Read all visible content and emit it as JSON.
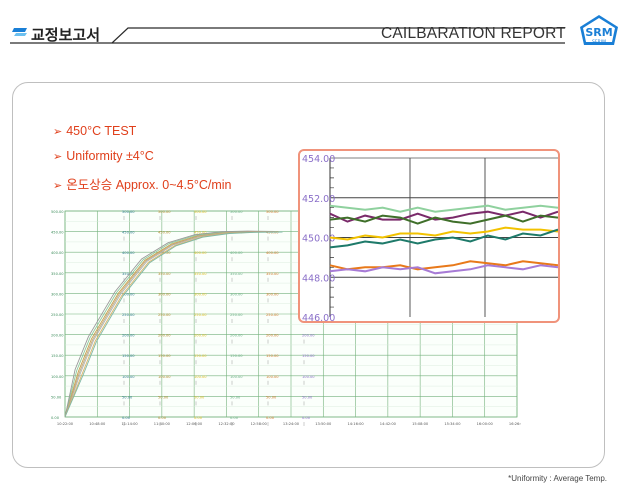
{
  "header": {
    "title": "교정보고서",
    "report_title": "CAILBARATION  REPORT",
    "logo_text": "SERIM",
    "logo_letters": "SRM",
    "accent": "#1a7fd6"
  },
  "bullets": [
    {
      "text": "450°C  TEST"
    },
    {
      "text": "Uniformity  ±4°C"
    },
    {
      "text": "온도상승  Approx. 0~4.5°C/min"
    }
  ],
  "footnote": "*Uniformity : Average Temp.",
  "colors": {
    "text_accent": "#e0401c",
    "zoom_border": "#f0937b",
    "axis_label": "#8a6fc9",
    "grid_main": "#74b27c"
  },
  "chart_data": [
    {
      "type": "line",
      "name": "main-recorder-chart",
      "ylim": [
        0,
        500
      ],
      "y_ticks": [
        500,
        450,
        400,
        350,
        300,
        250,
        200,
        150,
        100,
        50,
        0
      ],
      "x_tick_labels": [
        "10:22:00",
        "10:48:00",
        "11:14:00",
        "11:40:00",
        "12:06:00",
        "12:32:00",
        "12:58:00",
        "13:24:00",
        "13:50:00",
        "14:16:00",
        "14:42:00",
        "15:08:00",
        "15:34:00",
        "16:00:00",
        "16:26:00"
      ],
      "channel_label_columns": 7,
      "channel_colors": [
        "#3c8c5a",
        "#2c7a8c",
        "#b08a2a",
        "#e0c028",
        "#6ab086",
        "#d27a2a",
        "#8a6fc9"
      ],
      "series_shape": {
        "description": "heating curve",
        "x": [
          0,
          0.5,
          1,
          2,
          3,
          4,
          5,
          6,
          7,
          8
        ],
        "y": [
          0,
          110,
          190,
          300,
          380,
          420,
          440,
          448,
          450,
          450
        ]
      }
    },
    {
      "type": "line",
      "name": "zoom-inset",
      "ylim": [
        446,
        454
      ],
      "y_ticks": [
        "454.00",
        "452.00",
        "450.00",
        "448.00",
        "446.00"
      ],
      "series": [
        {
          "color": "#8fd19e",
          "values": [
            451.6,
            451.5,
            451.4,
            451.5,
            451.3,
            451.5,
            451.3,
            451.4,
            451.5,
            451.6,
            451.4,
            451.5,
            451.6,
            451.5
          ]
        },
        {
          "color": "#7a2a6a",
          "values": [
            451.2,
            450.8,
            451.1,
            450.9,
            450.9,
            451.2,
            450.9,
            451.0,
            451.2,
            451.3,
            451.1,
            451.3,
            451.0,
            451.3
          ]
        },
        {
          "color": "#3f6f2a",
          "values": [
            450.9,
            451.0,
            450.8,
            451.1,
            451.0,
            450.7,
            451.0,
            450.8,
            450.7,
            450.9,
            451.1,
            450.8,
            451.1,
            451.0
          ]
        },
        {
          "color": "#f2c200",
          "values": [
            450.0,
            449.9,
            450.1,
            450.0,
            450.2,
            450.2,
            450.1,
            450.3,
            450.2,
            450.3,
            450.5,
            450.4,
            450.4,
            450.3
          ]
        },
        {
          "color": "#1e7a6a",
          "values": [
            449.5,
            449.6,
            449.8,
            449.7,
            449.9,
            449.7,
            449.9,
            450.0,
            449.8,
            450.1,
            449.9,
            450.2,
            450.1,
            450.4
          ]
        },
        {
          "color": "#e8791a",
          "values": [
            448.6,
            448.4,
            448.5,
            448.5,
            448.6,
            448.4,
            448.5,
            448.6,
            448.8,
            448.7,
            448.6,
            448.8,
            448.7,
            448.6
          ]
        },
        {
          "color": "#a77bd6",
          "values": [
            448.3,
            448.4,
            448.3,
            448.5,
            448.4,
            448.5,
            448.2,
            448.3,
            448.4,
            448.6,
            448.5,
            448.4,
            448.6,
            448.5
          ]
        }
      ]
    }
  ]
}
